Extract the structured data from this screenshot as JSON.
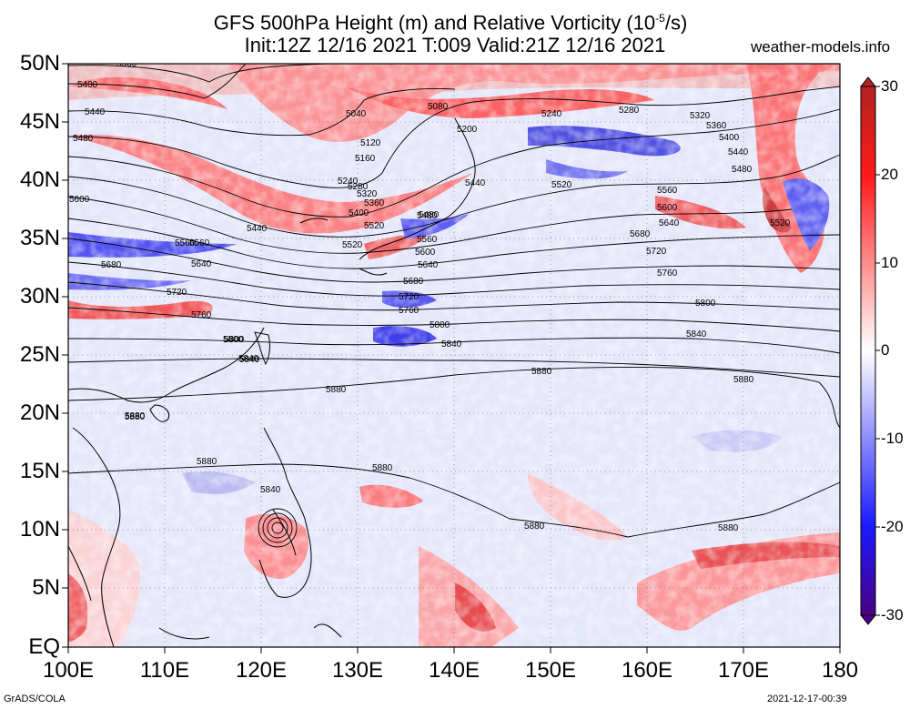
{
  "title": {
    "line1_prefix": "GFS 500hPa Height (m) and Relative Vorticity (10",
    "line1_exp": "-5",
    "line1_suffix": "/s)",
    "line2": "Init:12Z 12/16 2021 T:009 Valid:21Z 12/16 2021",
    "site": "weather-models.info"
  },
  "axes": {
    "y_labels": [
      "50N",
      "45N",
      "40N",
      "35N",
      "30N",
      "25N",
      "20N",
      "15N",
      "10N",
      "5N",
      "EQ"
    ],
    "x_labels": [
      "100E",
      "110E",
      "120E",
      "130E",
      "140E",
      "150E",
      "160E",
      "170E",
      "180"
    ]
  },
  "colorbar": {
    "labels": [
      "30",
      "20",
      "10",
      "0",
      "-10",
      "-20",
      "-30"
    ],
    "colors": [
      "#4b0082",
      "#1a1aff",
      "#8a8aff",
      "#ffffff",
      "#ff8a8a",
      "#ff1a1a",
      "#b22222"
    ]
  },
  "contour_labels": [
    "5360",
    "5400",
    "5440",
    "5480",
    "5600",
    "5040",
    "5080",
    "5120",
    "5160",
    "5200",
    "5240",
    "5280",
    "5320",
    "5360",
    "5400",
    "5440",
    "5480",
    "5520",
    "5560",
    "5600",
    "5640",
    "5680",
    "5720",
    "5760",
    "5800",
    "5840",
    "5880",
    "5520",
    "5560",
    "5600",
    "5640",
    "5680",
    "5720",
    "5760",
    "5800",
    "5840",
    "5880",
    "5880",
    "5880",
    "5880",
    "5880",
    "5880",
    "5880",
    "5840",
    "5520",
    "5640",
    "5680",
    "5720",
    "5760",
    "5800",
    "5840",
    "5440",
    "5480",
    "5520",
    "5560",
    "5360",
    "5320",
    "5280",
    "5240",
    "5400",
    "5440",
    "5480",
    "5560",
    "5800",
    "5840",
    "5880"
  ],
  "footer": {
    "left": "GrADS/COLA",
    "right": "2021-12-17-00:39"
  }
}
